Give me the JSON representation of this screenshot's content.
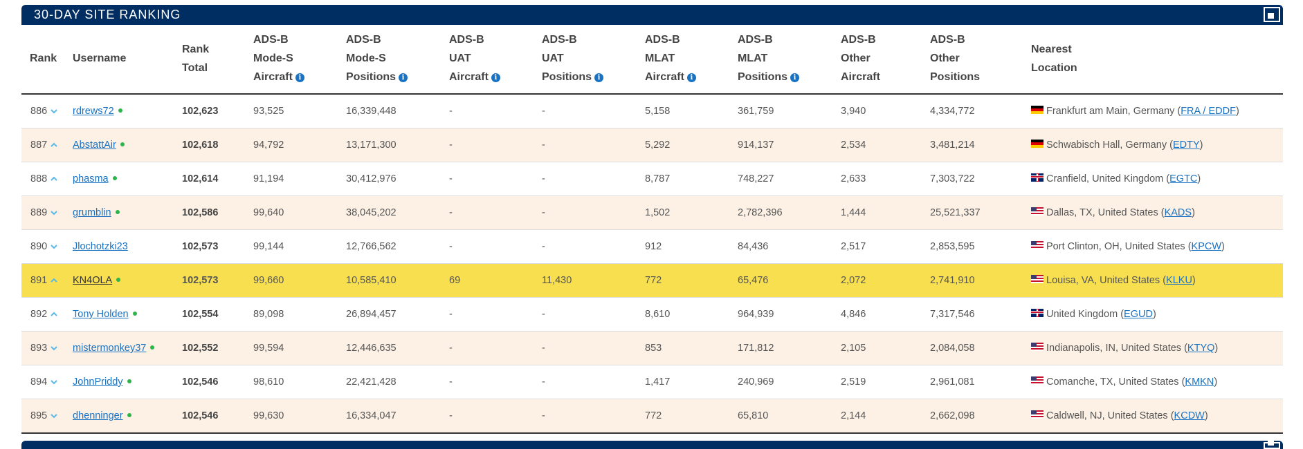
{
  "panel": {
    "title": "30-DAY SITE RANKING",
    "expand_icon": "expand-icon"
  },
  "columns": {
    "rank": "Rank",
    "username": "Username",
    "rank_total": [
      "Rank",
      "Total"
    ],
    "mode_s_aircraft": [
      "ADS-B",
      "Mode-S",
      "Aircraft"
    ],
    "mode_s_positions": [
      "ADS-B",
      "Mode-S",
      "Positions"
    ],
    "uat_aircraft": [
      "ADS-B",
      "UAT",
      "Aircraft"
    ],
    "uat_positions": [
      "ADS-B",
      "UAT",
      "Positions"
    ],
    "mlat_aircraft": [
      "ADS-B",
      "MLAT",
      "Aircraft"
    ],
    "mlat_positions": [
      "ADS-B",
      "MLAT",
      "Positions"
    ],
    "other_aircraft": [
      "ADS-B",
      "Other",
      "Aircraft"
    ],
    "other_positions": [
      "ADS-B",
      "Other",
      "Positions"
    ],
    "nearest_location": [
      "Nearest",
      "Location"
    ]
  },
  "colors": {
    "header_bg": "#002d62",
    "link": "#1a72c2",
    "online_dot": "#2db44a",
    "row_alt": "#fdf1e5",
    "row_highlight": "#f8df4f",
    "chevron": "#58b9e8"
  },
  "rows": [
    {
      "rank": "886",
      "trend": "down",
      "username": "rdrews72",
      "online": true,
      "total": "102,623",
      "ms_ac": "93,525",
      "ms_pos": "16,339,448",
      "uat_ac": "-",
      "uat_pos": "-",
      "mlat_ac": "5,158",
      "mlat_pos": "361,759",
      "oth_ac": "3,940",
      "oth_pos": "4,334,772",
      "flag": "de",
      "location": "Frankfurt am Main, Germany",
      "airport": "FRA / EDDF",
      "highlight": false
    },
    {
      "rank": "887",
      "trend": "up",
      "username": "AbstattAir",
      "online": true,
      "total": "102,618",
      "ms_ac": "94,792",
      "ms_pos": "13,171,300",
      "uat_ac": "-",
      "uat_pos": "-",
      "mlat_ac": "5,292",
      "mlat_pos": "914,137",
      "oth_ac": "2,534",
      "oth_pos": "3,481,214",
      "flag": "de",
      "location": "Schwabisch Hall, Germany",
      "airport": "EDTY",
      "highlight": false
    },
    {
      "rank": "888",
      "trend": "up",
      "username": "phasma",
      "online": true,
      "total": "102,614",
      "ms_ac": "91,194",
      "ms_pos": "30,412,976",
      "uat_ac": "-",
      "uat_pos": "-",
      "mlat_ac": "8,787",
      "mlat_pos": "748,227",
      "oth_ac": "2,633",
      "oth_pos": "7,303,722",
      "flag": "gb",
      "location": "Cranfield, United Kingdom",
      "airport": "EGTC",
      "highlight": false
    },
    {
      "rank": "889",
      "trend": "down",
      "username": "grumblin",
      "online": true,
      "total": "102,586",
      "ms_ac": "99,640",
      "ms_pos": "38,045,202",
      "uat_ac": "-",
      "uat_pos": "-",
      "mlat_ac": "1,502",
      "mlat_pos": "2,782,396",
      "oth_ac": "1,444",
      "oth_pos": "25,521,337",
      "flag": "us",
      "location": "Dallas, TX, United States",
      "airport": "KADS",
      "highlight": false
    },
    {
      "rank": "890",
      "trend": "down",
      "username": "Jlochotzki23",
      "online": false,
      "total": "102,573",
      "ms_ac": "99,144",
      "ms_pos": "12,766,562",
      "uat_ac": "-",
      "uat_pos": "-",
      "mlat_ac": "912",
      "mlat_pos": "84,436",
      "oth_ac": "2,517",
      "oth_pos": "2,853,595",
      "flag": "us",
      "location": "Port Clinton, OH, United States",
      "airport": "KPCW",
      "highlight": false
    },
    {
      "rank": "891",
      "trend": "up",
      "username": "KN4OLA",
      "online": true,
      "total": "102,573",
      "ms_ac": "99,660",
      "ms_pos": "10,585,410",
      "uat_ac": "69",
      "uat_pos": "11,430",
      "mlat_ac": "772",
      "mlat_pos": "65,476",
      "oth_ac": "2,072",
      "oth_pos": "2,741,910",
      "flag": "us",
      "location": "Louisa, VA, United States",
      "airport": "KLKU",
      "highlight": true
    },
    {
      "rank": "892",
      "trend": "up",
      "username": "Tony Holden",
      "online": true,
      "total": "102,554",
      "ms_ac": "89,098",
      "ms_pos": "26,894,457",
      "uat_ac": "-",
      "uat_pos": "-",
      "mlat_ac": "8,610",
      "mlat_pos": "964,939",
      "oth_ac": "4,846",
      "oth_pos": "7,317,546",
      "flag": "gb",
      "location": "United Kingdom",
      "airport": "EGUD",
      "highlight": false
    },
    {
      "rank": "893",
      "trend": "down",
      "username": "mistermonkey37",
      "online": true,
      "total": "102,552",
      "ms_ac": "99,594",
      "ms_pos": "12,446,635",
      "uat_ac": "-",
      "uat_pos": "-",
      "mlat_ac": "853",
      "mlat_pos": "171,812",
      "oth_ac": "2,105",
      "oth_pos": "2,084,058",
      "flag": "us",
      "location": "Indianapolis, IN, United States",
      "airport": "KTYQ",
      "highlight": false
    },
    {
      "rank": "894",
      "trend": "down",
      "username": "JohnPriddy",
      "online": true,
      "total": "102,546",
      "ms_ac": "98,610",
      "ms_pos": "22,421,428",
      "uat_ac": "-",
      "uat_pos": "-",
      "mlat_ac": "1,417",
      "mlat_pos": "240,969",
      "oth_ac": "2,519",
      "oth_pos": "2,961,081",
      "flag": "us",
      "location": "Comanche, TX, United States",
      "airport": "KMKN",
      "highlight": false
    },
    {
      "rank": "895",
      "trend": "down",
      "username": "dhenninger",
      "online": true,
      "total": "102,546",
      "ms_ac": "99,630",
      "ms_pos": "16,334,047",
      "uat_ac": "-",
      "uat_pos": "-",
      "mlat_ac": "772",
      "mlat_pos": "65,810",
      "oth_ac": "2,144",
      "oth_pos": "2,662,098",
      "flag": "us",
      "location": "Caldwell, NJ, United States",
      "airport": "KCDW",
      "highlight": false
    }
  ]
}
